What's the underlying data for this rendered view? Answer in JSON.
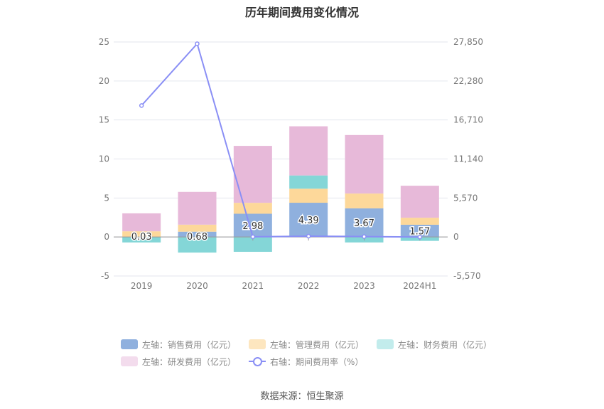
{
  "chart_data": {
    "type": "bar",
    "title": "历年期间费用变化情况",
    "categories": [
      "2019",
      "2020",
      "2021",
      "2022",
      "2023",
      "2024H1"
    ],
    "left_axis": {
      "ticks": [
        "25",
        "20",
        "15",
        "10",
        "5",
        "0",
        "-5"
      ],
      "ylim": [
        -5,
        25
      ]
    },
    "right_axis": {
      "ticks": [
        "27,850",
        "22,280",
        "16,710",
        "11,140",
        "5,570",
        "0",
        "-5,570"
      ],
      "ylim": [
        -5570,
        27850
      ]
    },
    "series": [
      {
        "name": "左轴：销售费用（亿元）",
        "color": "#8fb0de",
        "values": [
          0.03,
          0.68,
          2.98,
          4.39,
          3.67,
          1.57
        ]
      },
      {
        "name": "左轴：管理费用（亿元）",
        "color": "#fdd89a",
        "values": [
          0.7,
          0.9,
          1.4,
          1.8,
          1.9,
          0.9
        ]
      },
      {
        "name": "左轴：财务费用（亿元）",
        "color": "#84d6d7",
        "values": [
          -0.7,
          -2.0,
          -1.9,
          1.7,
          -0.7,
          -0.5
        ]
      },
      {
        "name": "左轴：研发费用（亿元）",
        "color": "#e7b9d9",
        "values": [
          2.3,
          4.2,
          7.3,
          6.3,
          7.5,
          4.1
        ]
      },
      {
        "name": "右轴：期间费用率（%）",
        "color": "#8a8ff5",
        "axis": "right",
        "values": [
          18770,
          27600,
          30,
          120,
          60,
          -10
        ]
      }
    ],
    "data_labels": [
      "0.03",
      "0.68",
      "2.98",
      "4.39",
      "3.67",
      "1.57"
    ],
    "legend_position": "bottom",
    "grid": true
  },
  "source_text": "数据来源：恒生聚源"
}
